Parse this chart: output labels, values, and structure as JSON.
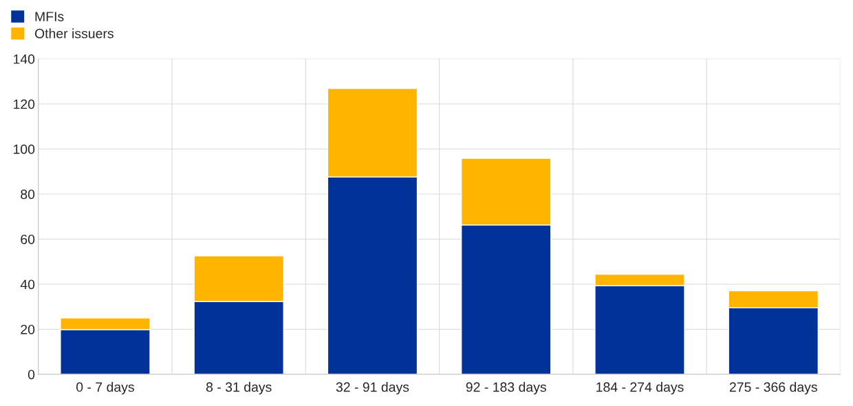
{
  "chart_data": {
    "type": "bar",
    "stacked": true,
    "categories": [
      "0 - 7 days",
      "8 - 31 days",
      "32 - 91 days",
      "92 - 183 days",
      "184 - 274 days",
      "275 - 366 days"
    ],
    "series": [
      {
        "name": "MFIs",
        "color": "#003299",
        "values": [
          19.8,
          32.3,
          87.6,
          66.3,
          39.3,
          29.5
        ]
      },
      {
        "name": "Other issuers",
        "color": "#ffb400",
        "values": [
          5.2,
          20.3,
          39.3,
          29.6,
          5.1,
          7.6
        ]
      }
    ],
    "ylim": [
      0,
      140
    ],
    "yticks": [
      0,
      20,
      40,
      60,
      80,
      100,
      120,
      140
    ],
    "grid": true,
    "legend": "top left"
  }
}
